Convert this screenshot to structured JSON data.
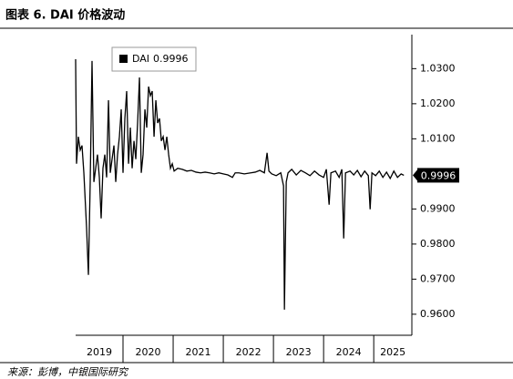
{
  "chart_data": {
    "type": "line",
    "title": "图表 6. DAI 价格波动",
    "source": "来源：彭博，中银国际研究",
    "categories": [
      "2019",
      "2020",
      "2021",
      "2022",
      "2023",
      "2024",
      "2025"
    ],
    "xlim": [
      2019.055,
      2025.76
    ],
    "xticks": [
      2020,
      2021,
      2022,
      2023,
      2024,
      2025
    ],
    "ylim": [
      0.954,
      1.0397
    ],
    "yticks": [
      {
        "value": 0.96,
        "label": "0.9600"
      },
      {
        "value": 0.97,
        "label": "0.9700"
      },
      {
        "value": 0.98,
        "label": "0.9800"
      },
      {
        "value": 0.99,
        "label": "0.9900"
      },
      {
        "value": 1.01,
        "label": "1.0100"
      },
      {
        "value": 1.02,
        "label": "1.0200"
      },
      {
        "value": 1.03,
        "label": "1.0300"
      }
    ],
    "x": [
      2019.055,
      2019.073,
      2019.109,
      2019.146,
      2019.182,
      2019.219,
      2019.273,
      2019.31,
      2019.346,
      2019.382,
      2019.419,
      2019.455,
      2019.491,
      2019.528,
      2019.564,
      2019.6,
      2019.637,
      2019.673,
      2019.71,
      2019.746,
      2019.782,
      2019.819,
      2019.855,
      2019.891,
      2019.928,
      2019.964,
      2020.0,
      2020.037,
      2020.073,
      2020.11,
      2020.146,
      2020.182,
      2020.219,
      2020.255,
      2020.291,
      2020.328,
      2020.364,
      2020.4,
      2020.437,
      2020.473,
      2020.51,
      2020.546,
      2020.582,
      2020.619,
      2020.655,
      2020.691,
      2020.728,
      2020.764,
      2020.801,
      2020.837,
      2020.873,
      2020.91,
      2020.946,
      2020.982,
      2021.019,
      2021.091,
      2021.182,
      2021.273,
      2021.364,
      2021.455,
      2021.546,
      2021.637,
      2021.728,
      2021.819,
      2021.91,
      2022.0,
      2022.091,
      2022.182,
      2022.237,
      2022.31,
      2022.419,
      2022.546,
      2022.637,
      2022.728,
      2022.819,
      2022.873,
      2022.91,
      2022.964,
      2023.055,
      2023.146,
      2023.201,
      2023.219,
      2023.255,
      2023.291,
      2023.364,
      2023.455,
      2023.546,
      2023.637,
      2023.728,
      2023.819,
      2023.91,
      2024.0,
      2024.055,
      2024.11,
      2024.146,
      2024.237,
      2024.31,
      2024.364,
      2024.401,
      2024.437,
      2024.528,
      2024.601,
      2024.673,
      2024.746,
      2024.819,
      2024.892,
      2024.928,
      2024.964,
      2025.037,
      2025.11,
      2025.182,
      2025.255,
      2025.328,
      2025.401,
      2025.473,
      2025.546,
      2025.601
    ],
    "series": [
      {
        "name": "DAI",
        "color": "#000000",
        "values": [
          1.0327,
          1.0029,
          1.0106,
          1.0068,
          1.0081,
          1.0003,
          0.9847,
          0.9712,
          0.9977,
          1.0322,
          0.9977,
          1.0016,
          1.0055,
          0.999,
          0.9873,
          1.0016,
          1.0055,
          0.999,
          1.021,
          1.0003,
          1.0042,
          1.0081,
          0.9977,
          1.0055,
          1.0106,
          1.0184,
          1.0003,
          1.0158,
          1.0236,
          1.0029,
          1.0132,
          1.0016,
          1.0094,
          1.0042,
          1.0145,
          1.0275,
          1.0003,
          1.0055,
          1.0184,
          1.0132,
          1.0249,
          1.0223,
          1.0236,
          1.0106,
          1.021,
          1.0145,
          1.0158,
          1.0094,
          1.0106,
          1.0068,
          1.0106,
          1.0055,
          1.0016,
          1.0029,
          1.0008,
          1.0016,
          1.0013,
          1.0008,
          1.001,
          1.0005,
          1.0003,
          1.0005,
          1.0003,
          1.0,
          1.0003,
          1.0,
          0.9997,
          0.999,
          1.0003,
          1.0003,
          1.0,
          1.0003,
          1.0005,
          1.001,
          1.0003,
          1.006,
          1.0008,
          1.0,
          0.9995,
          1.0003,
          0.9966,
          0.9613,
          0.9977,
          1.0003,
          1.0013,
          0.9997,
          1.001,
          1.0003,
          0.9995,
          1.0008,
          0.9997,
          0.999,
          1.0013,
          0.9912,
          1.0003,
          1.0008,
          0.999,
          1.0013,
          0.9816,
          1.0003,
          1.0008,
          0.9997,
          1.001,
          0.9992,
          1.0008,
          0.9995,
          0.9899,
          1.0003,
          0.9995,
          1.0008,
          0.999,
          1.0005,
          0.9987,
          1.0008,
          0.999,
          1.0,
          0.9996
        ]
      }
    ]
  }
}
